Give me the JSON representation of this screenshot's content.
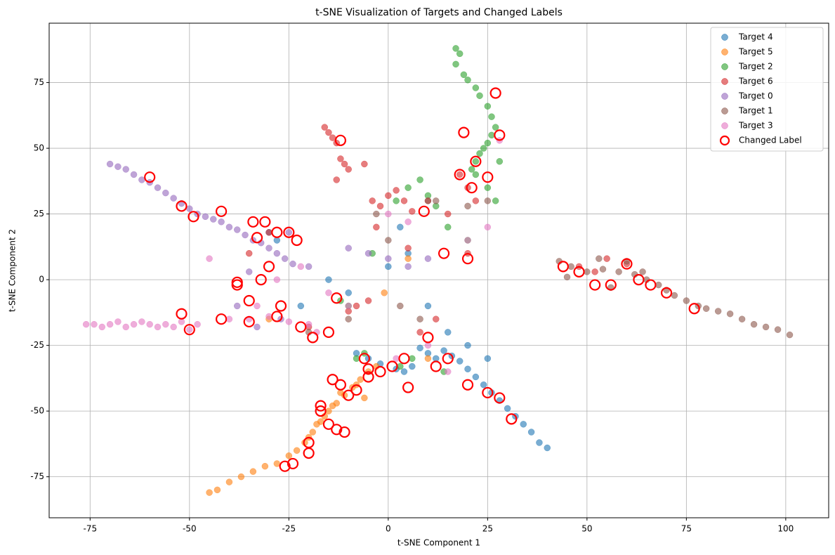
{
  "chart_data": {
    "type": "scatter",
    "title": "t-SNE Visualization of Targets and Changed Labels",
    "xlabel": "t-SNE Component 1",
    "ylabel": "t-SNE Component 2",
    "xlim": [
      -85.3,
      110.8
    ],
    "ylim": [
      -90.6,
      97.6
    ],
    "xticks": [
      -75,
      -50,
      -25,
      0,
      25,
      50,
      75,
      100
    ],
    "yticks": [
      -75,
      -50,
      -25,
      0,
      25,
      50,
      75
    ],
    "grid": true,
    "legend": "upper right",
    "series": [
      {
        "name": "Target 4",
        "color": "#1f77b4",
        "marker": "filled",
        "x": [
          40,
          38,
          36,
          34,
          32,
          30,
          28,
          26,
          24,
          22,
          20,
          18,
          16,
          14,
          12,
          10,
          8,
          6,
          4,
          2,
          -2,
          -5,
          -8,
          10,
          15,
          20,
          25,
          -10,
          5,
          -15,
          -30,
          -28,
          0,
          3,
          -22
        ],
        "y": [
          -64,
          -62,
          -58,
          -55,
          -52,
          -49,
          -46,
          -43,
          -40,
          -37,
          -34,
          -31,
          -29,
          -27,
          -30,
          -28,
          -26,
          -33,
          -35,
          -34,
          -32,
          -30,
          -28,
          -10,
          -20,
          -25,
          -30,
          -5,
          10,
          0,
          18,
          15,
          5,
          20,
          -10
        ]
      },
      {
        "name": "Target 5",
        "color": "#ff7f0e",
        "marker": "filled",
        "x": [
          -45,
          -43,
          -40,
          -37,
          -34,
          -31,
          -28,
          -25,
          -23,
          -21,
          -19,
          -17,
          -15,
          -13,
          -11,
          -9,
          -7,
          -5,
          -3,
          -16,
          -12,
          -8,
          -20,
          -1,
          5,
          -30,
          -18,
          -14,
          -6,
          10
        ],
        "y": [
          -81,
          -80,
          -77,
          -75,
          -73,
          -71,
          -70,
          -67,
          -65,
          -62,
          -58,
          -54,
          -50,
          -47,
          -44,
          -41,
          -38,
          -35,
          -33,
          -52,
          -43,
          -40,
          -60,
          -5,
          8,
          -15,
          -55,
          -48,
          -45,
          -30
        ]
      },
      {
        "name": "Target 2",
        "color": "#2ca02c",
        "marker": "filled",
        "x": [
          17,
          18,
          17,
          19,
          20,
          22,
          23,
          25,
          26,
          27,
          26,
          25,
          24,
          23,
          22,
          21,
          22,
          25,
          27,
          28,
          5,
          8,
          10,
          12,
          2,
          -4,
          -10,
          -12,
          15,
          20,
          -6,
          -8,
          6,
          3,
          14
        ],
        "y": [
          88,
          86,
          82,
          78,
          76,
          73,
          70,
          66,
          62,
          58,
          55,
          52,
          50,
          48,
          45,
          42,
          40,
          35,
          30,
          45,
          35,
          38,
          32,
          28,
          30,
          10,
          -10,
          -8,
          20,
          15,
          -28,
          -30,
          -30,
          -33,
          -35
        ]
      },
      {
        "name": "Target 6",
        "color": "#d62728",
        "marker": "filled",
        "x": [
          -16,
          -15,
          -14,
          -13,
          -12,
          -11,
          -10,
          -13,
          -6,
          -4,
          -2,
          0,
          2,
          4,
          6,
          10,
          15,
          18,
          20,
          22,
          20,
          -8,
          -5,
          -10,
          48,
          52,
          55,
          60,
          -30,
          -35,
          -20,
          12,
          8,
          5,
          -3
        ],
        "y": [
          58,
          56,
          54,
          52,
          46,
          44,
          42,
          38,
          44,
          30,
          28,
          32,
          34,
          30,
          26,
          30,
          25,
          40,
          35,
          30,
          10,
          -10,
          -8,
          -12,
          5,
          3,
          8,
          6,
          18,
          10,
          -18,
          -15,
          -20,
          12,
          20
        ]
      },
      {
        "name": "Target 0",
        "color": "#9467bd",
        "marker": "filled",
        "x": [
          -70,
          -68,
          -66,
          -64,
          -62,
          -60,
          -58,
          -56,
          -54,
          -52,
          -50,
          -48,
          -46,
          -44,
          -42,
          -40,
          -38,
          -36,
          -34,
          -32,
          -30,
          -28,
          -26,
          -24,
          -20,
          -10,
          -5,
          0,
          5,
          10,
          -33,
          -27,
          -35,
          -38,
          -25
        ],
        "y": [
          44,
          43,
          42,
          40,
          38,
          37,
          35,
          33,
          31,
          29,
          27,
          25,
          24,
          23,
          22,
          20,
          19,
          17,
          15,
          14,
          12,
          10,
          8,
          6,
          5,
          12,
          10,
          8,
          5,
          8,
          -18,
          -15,
          3,
          -10,
          18
        ]
      },
      {
        "name": "Target 1",
        "color": "#8c564b",
        "marker": "filled",
        "x": [
          43,
          46,
          50,
          54,
          58,
          62,
          65,
          68,
          70,
          72,
          75,
          78,
          80,
          83,
          86,
          89,
          92,
          95,
          98,
          101,
          56,
          60,
          64,
          45,
          53,
          0,
          3,
          -3,
          10,
          -20,
          20,
          25,
          -10,
          8,
          12
        ],
        "y": [
          7,
          5,
          3,
          4,
          3,
          2,
          0,
          -2,
          -4,
          -6,
          -8,
          -10,
          -11,
          -12,
          -13,
          -15,
          -17,
          -18,
          -19,
          -21,
          -3,
          7,
          3,
          1,
          8,
          15,
          -10,
          25,
          30,
          -20,
          28,
          30,
          -15,
          -15,
          30
        ]
      },
      {
        "name": "Target 3",
        "color": "#e377c2",
        "marker": "filled",
        "x": [
          -76,
          -74,
          -72,
          -70,
          -68,
          -66,
          -64,
          -62,
          -60,
          -58,
          -56,
          -54,
          -52,
          -50,
          -48,
          -35,
          -30,
          -25,
          -20,
          -33,
          -28,
          -22,
          -18,
          -10,
          0,
          5,
          10,
          15,
          20,
          25,
          -40,
          -45,
          -15,
          2,
          28
        ],
        "y": [
          -17,
          -17,
          -18,
          -17,
          -16,
          -18,
          -17,
          -16,
          -17,
          -18,
          -17,
          -18,
          -16,
          -19,
          -17,
          -15,
          -14,
          -16,
          -17,
          -10,
          0,
          5,
          -20,
          -10,
          25,
          22,
          -25,
          -35,
          15,
          20,
          -15,
          8,
          -5,
          -30,
          53
        ]
      },
      {
        "name": "Changed Label",
        "color": "#ff0000",
        "marker": "hollow",
        "x": [
          -60,
          -52,
          -49,
          -42,
          -38,
          -34,
          -31,
          -35,
          -33,
          -28,
          -25,
          -23,
          -32,
          -30,
          -38,
          -35,
          -27,
          -52,
          -50,
          -42,
          -28,
          -22,
          -19,
          -15,
          -13,
          -5,
          -2,
          1,
          4,
          5,
          -6,
          -14,
          -12,
          -10,
          -8,
          -5,
          -17,
          -15,
          -13,
          -11,
          -20,
          -24,
          -26,
          -20,
          -17,
          27,
          28,
          19,
          22,
          25,
          18,
          21,
          15,
          12,
          10,
          20,
          25,
          28,
          31,
          44,
          48,
          52,
          56,
          60,
          63,
          66,
          70,
          77,
          -12,
          20,
          14,
          9
        ],
        "y": [
          39,
          28,
          24,
          -15,
          -1,
          22,
          22,
          -8,
          16,
          18,
          18,
          15,
          0,
          5,
          -2,
          -16,
          -10,
          -13,
          -19,
          26,
          -14,
          -18,
          -22,
          -20,
          -7,
          -34,
          -35,
          -33,
          -30,
          -41,
          -30,
          -38,
          -40,
          -44,
          -42,
          -37,
          -48,
          -55,
          -57,
          -58,
          -62,
          -70,
          -71,
          -66,
          -50,
          71,
          55,
          56,
          45,
          39,
          40,
          35,
          -30,
          -33,
          -22,
          -40,
          -43,
          -45,
          -53,
          5,
          3,
          -2,
          -2,
          6,
          0,
          -2,
          -5,
          -11,
          53,
          8,
          10,
          26
        ]
      }
    ]
  }
}
